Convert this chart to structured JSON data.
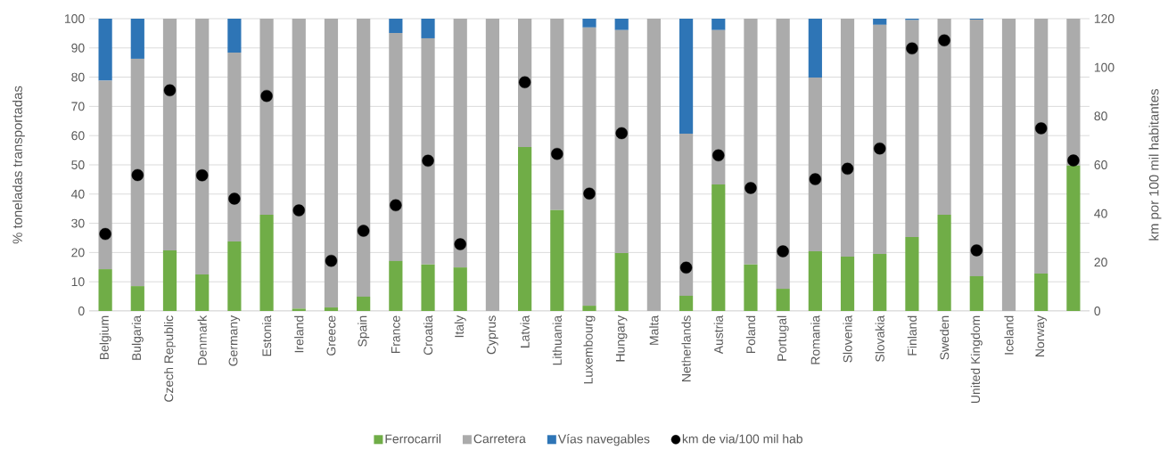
{
  "chart_data": {
    "type": "bar",
    "stacked": true,
    "categories": [
      "Belgium",
      "Bulgaria",
      "Czech Republic",
      "Denmark",
      "Germany",
      "Estonia",
      "Ireland",
      "Greece",
      "Spain",
      "France",
      "Croatia",
      "Italy",
      "Cyprus",
      "Latvia",
      "Lithuania",
      "Luxembourg",
      "Hungary",
      "Malta",
      "Netherlands",
      "Austria",
      "Poland",
      "Portugal",
      "Romania",
      "Slovenia",
      "Slovakia",
      "Finland",
      "Sweden",
      "United Kingdom",
      "Iceland",
      "Norway",
      null
    ],
    "series": [
      {
        "name": "Ferrocarril",
        "color": "#70ad47",
        "values": [
          14.3,
          8.5,
          20.7,
          12.5,
          23.8,
          32.9,
          0.8,
          1.2,
          4.9,
          17.1,
          15.9,
          14.9,
          0,
          56.1,
          34.5,
          1.8,
          19.8,
          0,
          5.2,
          43.3,
          15.9,
          7.6,
          20.4,
          18.6,
          19.5,
          25.3,
          32.9,
          11.9,
          0,
          12.8,
          49.8
        ]
      },
      {
        "name": "Carretera",
        "color": "#ababab",
        "values": [
          64.5,
          77.8,
          79.3,
          87.5,
          64.6,
          67.1,
          99.2,
          98.8,
          95.1,
          78.0,
          77.4,
          85.1,
          100,
          43.9,
          65.5,
          95.2,
          76.3,
          100,
          55.5,
          52.8,
          84.1,
          92.4,
          59.5,
          81.4,
          78.4,
          74.2,
          67.1,
          87.8,
          100,
          87.2,
          50.2
        ]
      },
      {
        "name": "Vías navegables",
        "color": "#2e75b6",
        "values": [
          21.2,
          13.7,
          0,
          0,
          11.6,
          0,
          0,
          0,
          0,
          4.9,
          6.7,
          0,
          0,
          0,
          0,
          3.0,
          3.9,
          0,
          39.3,
          3.9,
          0,
          0,
          20.1,
          0,
          2.1,
          0.5,
          0,
          0.3,
          0,
          0,
          0
        ]
      },
      {
        "name": "km de via/100 mil hab",
        "type": "scatter",
        "axis": "y2",
        "color": "#000000",
        "values": [
          31.6,
          55.8,
          90.6,
          55.7,
          46.1,
          88.3,
          41.3,
          20.6,
          32.9,
          43.4,
          61.7,
          27.4,
          null,
          93.9,
          64.5,
          48.2,
          73.0,
          null,
          17.8,
          63.9,
          50.5,
          24.5,
          54.1,
          58.4,
          66.7,
          107.8,
          111.1,
          24.9,
          null,
          75.0,
          61.8
        ]
      }
    ],
    "ylabel": "% toneladas transportadas",
    "y2label": "km por 100 mil habitantes",
    "ylim": [
      0,
      100
    ],
    "yticks": [
      0,
      10,
      20,
      30,
      40,
      50,
      60,
      70,
      80,
      90,
      100
    ],
    "y2lim": [
      0,
      120
    ],
    "y2ticks": [
      0,
      20,
      40,
      60,
      80,
      100,
      120
    ],
    "grid": "y",
    "legend": "bottom"
  }
}
